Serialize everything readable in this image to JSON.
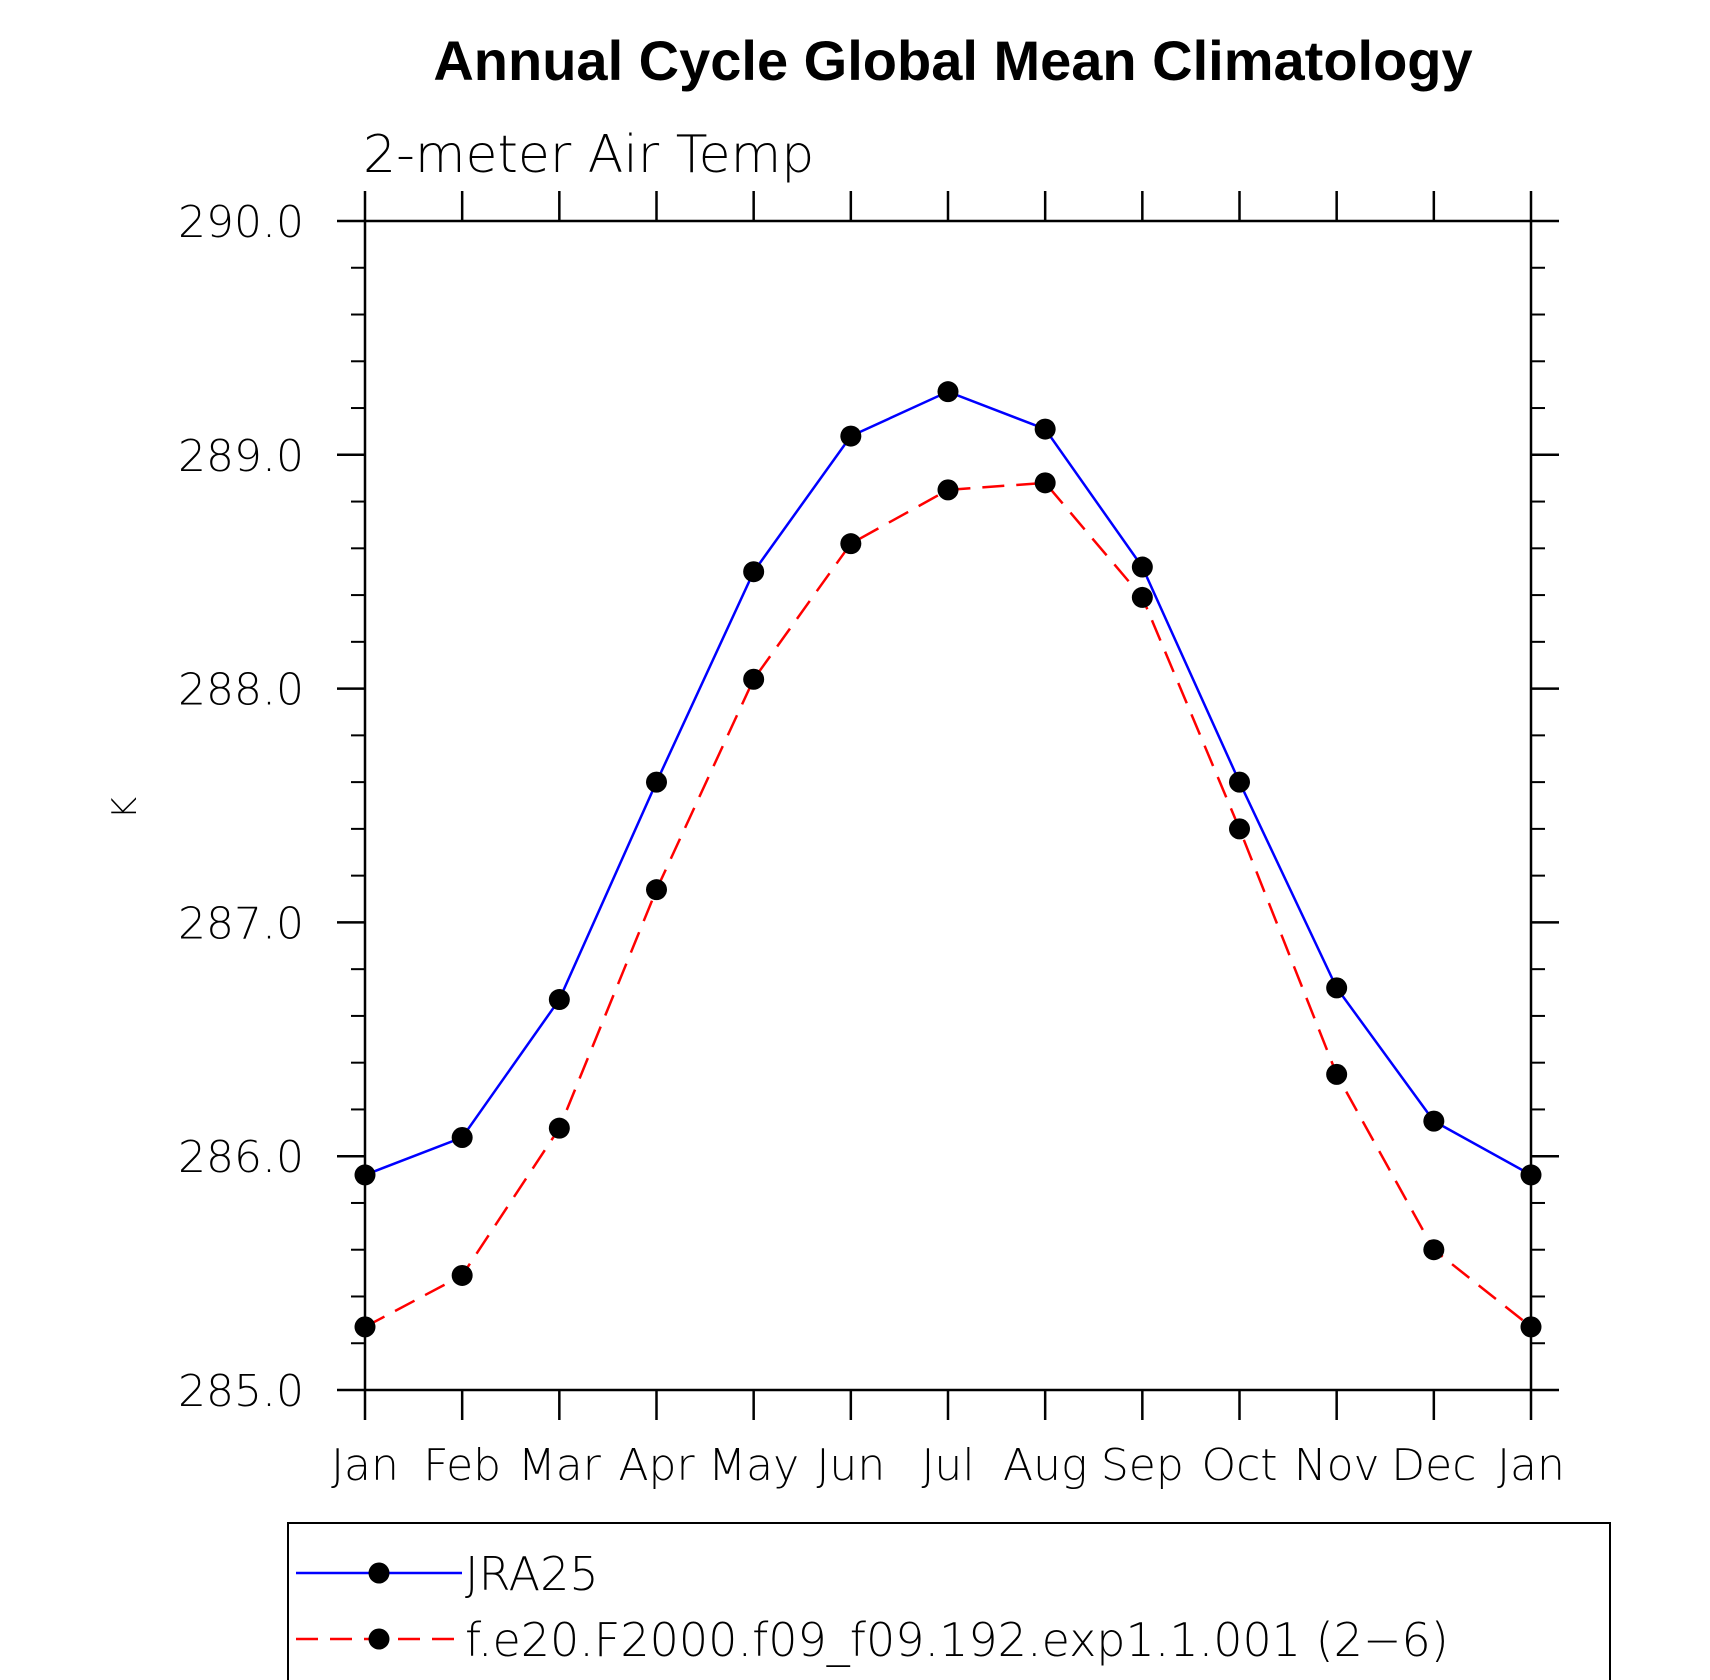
{
  "chart_data": {
    "type": "line",
    "title": "Annual Cycle Global Mean Climatology",
    "subtitle": "2-meter Air Temp",
    "xlabel": "",
    "ylabel": "K",
    "categories": [
      "Jan",
      "Feb",
      "Mar",
      "Apr",
      "May",
      "Jun",
      "Jul",
      "Aug",
      "Sep",
      "Oct",
      "Nov",
      "Dec",
      "Jan"
    ],
    "ylim": [
      285.0,
      290.0
    ],
    "yticks": [
      "285.0",
      "286.0",
      "287.0",
      "288.0",
      "289.0",
      "290.0"
    ],
    "grid": false,
    "legend_position": "bottom",
    "series": [
      {
        "name": "JRA25",
        "color": "#0000ff",
        "line_style": "solid",
        "marker": "filled-circle",
        "values": [
          285.92,
          286.08,
          286.67,
          287.6,
          288.5,
          289.08,
          289.27,
          289.11,
          288.52,
          287.6,
          286.72,
          286.15,
          285.92
        ]
      },
      {
        "name": "f.e20.F2000.f09_f09.192.exp1.1.001 (2−6)",
        "color": "#ff0000",
        "line_style": "dashed",
        "marker": "filled-circle",
        "values": [
          285.27,
          285.49,
          286.12,
          287.14,
          288.04,
          288.62,
          288.85,
          288.88,
          288.39,
          287.4,
          286.35,
          285.6,
          285.27
        ]
      }
    ]
  }
}
